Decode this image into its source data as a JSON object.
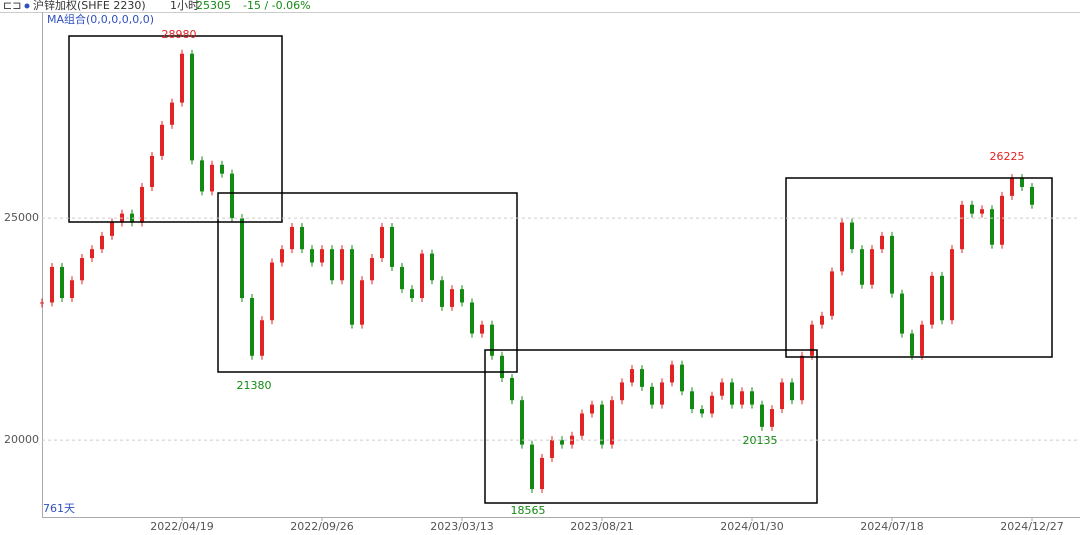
{
  "header": {
    "symbol": "沪锌加权(SHFE 2230)",
    "period": "1小时",
    "price": "25305",
    "change": "-15 / -0.06%",
    "indicator": "MA组合(0,0,0,0,0,0)"
  },
  "chart_data": {
    "type": "candlestick",
    "footnote": "761天",
    "categories": [
      null,
      null,
      null,
      null,
      null,
      null,
      null,
      null,
      null,
      null,
      null,
      null,
      null,
      null,
      "2022/04/19",
      null,
      null,
      null,
      null,
      null,
      null,
      null,
      null,
      null,
      null,
      null,
      null,
      null,
      "2022/09/26",
      null,
      null,
      null,
      null,
      null,
      null,
      null,
      null,
      null,
      null,
      null,
      null,
      null,
      "2023/03/13",
      null,
      null,
      null,
      null,
      null,
      null,
      null,
      null,
      null,
      null,
      null,
      null,
      null,
      "2023/08/21",
      null,
      null,
      null,
      null,
      null,
      null,
      null,
      null,
      null,
      null,
      null,
      null,
      null,
      null,
      "2024/01/30",
      null,
      null,
      null,
      null,
      null,
      null,
      null,
      null,
      null,
      null,
      null,
      null,
      null,
      "2024/07/18",
      null,
      null,
      null,
      null,
      null,
      null,
      null,
      null,
      null,
      null,
      null,
      null,
      null,
      "2024/12/27"
    ],
    "values": [
      23100,
      23900,
      23200,
      23600,
      24100,
      24300,
      24600,
      24900,
      25100,
      24900,
      25700,
      26400,
      27100,
      27600,
      28700,
      26300,
      25600,
      26200,
      26000,
      25000,
      23200,
      21900,
      22700,
      24000,
      24300,
      24800,
      24300,
      24000,
      24300,
      23600,
      24300,
      22600,
      23600,
      24100,
      24800,
      23900,
      23400,
      23200,
      24200,
      23600,
      23000,
      23400,
      23100,
      22400,
      22600,
      21900,
      21400,
      20900,
      19900,
      18900,
      19600,
      20000,
      19900,
      20100,
      20600,
      20800,
      19900,
      20900,
      21300,
      21600,
      21200,
      20800,
      21300,
      21700,
      21100,
      20700,
      20600,
      21000,
      21300,
      20800,
      21100,
      20800,
      20300,
      20700,
      21300,
      20900,
      21900,
      22600,
      22800,
      23800,
      24900,
      24300,
      23500,
      24300,
      24600,
      23300,
      22400,
      21900,
      22600,
      23700,
      22700,
      24300,
      25300,
      25100,
      25200,
      24400,
      25500,
      25900,
      25700,
      25300
    ],
    "up_color": "#e02424",
    "down_color": "#138a13",
    "ylim": [
      18270,
      29640
    ],
    "yticks": [
      20000,
      25000
    ],
    "grid": true,
    "annotations": [
      {
        "text": "28980",
        "color": "#e02424"
      },
      {
        "text": "21380",
        "color": "#138a13"
      },
      {
        "text": "18565",
        "color": "#138a13"
      },
      {
        "text": "20135",
        "color": "#138a13"
      },
      {
        "text": "26225",
        "color": "#e02424"
      }
    ]
  }
}
